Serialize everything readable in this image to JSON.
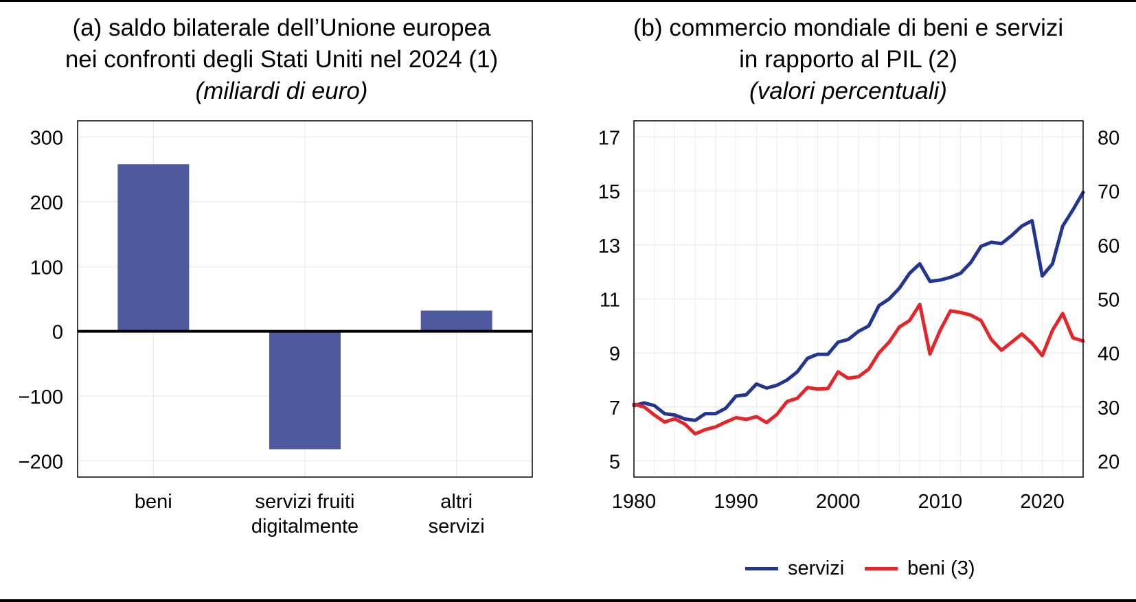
{
  "chart_data": [
    {
      "type": "bar",
      "title_lines": [
        "(a) saldo bilaterale dell’Unione europea",
        "nei confronti degli Stati Uniti nel 2024 (1)"
      ],
      "subtitle": "(miliardi di euro)",
      "categories": [
        [
          "beni"
        ],
        [
          "servizi fruiti",
          "digitalmente"
        ],
        [
          "altri",
          "servizi"
        ]
      ],
      "values": [
        258,
        -182,
        32
      ],
      "ylim": [
        -225,
        325
      ],
      "yticks": [
        300,
        200,
        100,
        0,
        -100,
        -200
      ],
      "ytick_labels": [
        "300",
        "200",
        "100",
        "0",
        "−100",
        "−200"
      ],
      "bar_color": "#4f5aa0",
      "grid": true
    },
    {
      "type": "line",
      "title_lines": [
        "(b) commercio mondiale di beni e servizi",
        "in rapporto al PIL (2)"
      ],
      "subtitle": "(valori percentuali)",
      "x": [
        1980,
        1981,
        1982,
        1983,
        1984,
        1985,
        1986,
        1987,
        1988,
        1989,
        1990,
        1991,
        1992,
        1993,
        1994,
        1995,
        1996,
        1997,
        1998,
        1999,
        2000,
        2001,
        2002,
        2003,
        2004,
        2005,
        2006,
        2007,
        2008,
        2009,
        2010,
        2011,
        2012,
        2013,
        2014,
        2015,
        2016,
        2017,
        2018,
        2019,
        2020,
        2021,
        2022,
        2023,
        2024
      ],
      "xlim": [
        1980,
        2024
      ],
      "xticks": [
        1980,
        1990,
        2000,
        2010,
        2020
      ],
      "ylim_left": [
        4.4,
        17.6
      ],
      "yticks_left": [
        17,
        15,
        13,
        11,
        9,
        7,
        5
      ],
      "ylim_right": [
        17,
        83
      ],
      "yticks_right": [
        80,
        70,
        60,
        50,
        40,
        30,
        20
      ],
      "grid": true,
      "series": [
        {
          "name": "servizi",
          "axis": "left",
          "color": "#22368f",
          "values": [
            7.05,
            7.15,
            7.05,
            6.75,
            6.7,
            6.55,
            6.5,
            6.75,
            6.75,
            6.95,
            7.4,
            7.45,
            7.85,
            7.7,
            7.8,
            8.0,
            8.3,
            8.8,
            8.95,
            8.95,
            9.4,
            9.5,
            9.8,
            10.0,
            10.75,
            11.0,
            11.4,
            11.95,
            12.3,
            11.65,
            11.7,
            11.8,
            11.95,
            12.35,
            12.95,
            13.1,
            13.05,
            13.35,
            13.7,
            13.9,
            11.85,
            12.3,
            13.7,
            14.3,
            14.95
          ]
        },
        {
          "name": "beni (3)",
          "axis": "right",
          "color": "#e3262a",
          "values": [
            30.5,
            30.0,
            28.5,
            27.2,
            27.8,
            26.8,
            25.0,
            25.8,
            26.3,
            27.2,
            28.0,
            27.7,
            28.2,
            27.1,
            28.6,
            31.0,
            31.6,
            33.6,
            33.3,
            33.4,
            36.5,
            35.3,
            35.6,
            37.0,
            40.0,
            42.0,
            44.8,
            46.0,
            49.0,
            39.8,
            44.2,
            47.8,
            47.5,
            47.0,
            46.0,
            42.5,
            40.5,
            42.0,
            43.5,
            41.8,
            39.5,
            44.2,
            47.3,
            42.8,
            42.2
          ]
        }
      ],
      "legend": "bottom"
    }
  ]
}
